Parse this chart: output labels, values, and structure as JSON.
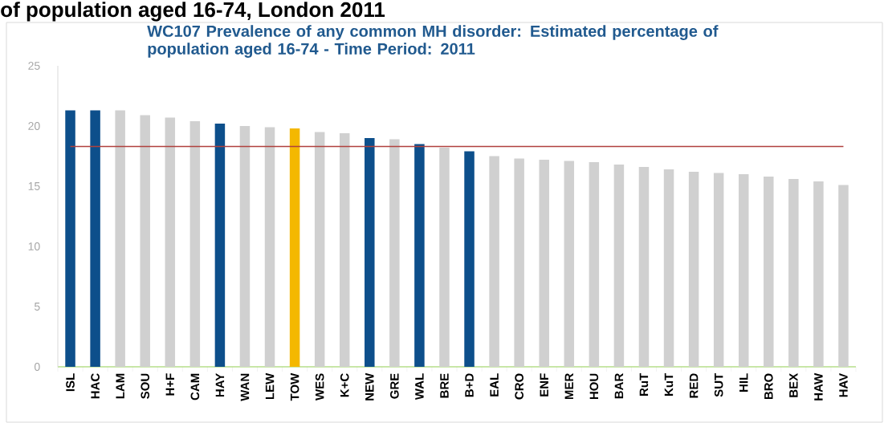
{
  "chart_data": {
    "type": "bar",
    "title": "of population aged 16-74, London 2011",
    "subtitle": "WC107 Prevalence of any common MH disorder: Estimated percentage of population aged 16-74 - Time Period: 2011",
    "categories": [
      "ISL",
      "HAC",
      "LAM",
      "SOU",
      "H+F",
      "CAM",
      "HAY",
      "WAN",
      "LEW",
      "TOW",
      "WES",
      "K+C",
      "NEW",
      "GRE",
      "WAL",
      "BRE",
      "B+D",
      "EAL",
      "CRO",
      "ENF",
      "MER",
      "HOU",
      "BAR",
      "RuT",
      "KuT",
      "RED",
      "SUT",
      "HIL",
      "BRO",
      "BEX",
      "HAW",
      "HAV"
    ],
    "values": [
      21.3,
      21.3,
      21.3,
      20.9,
      20.7,
      20.4,
      20.2,
      20.0,
      19.9,
      19.8,
      19.5,
      19.4,
      19.0,
      18.9,
      18.5,
      18.2,
      17.9,
      17.5,
      17.3,
      17.2,
      17.1,
      17.0,
      16.8,
      16.6,
      16.4,
      16.2,
      16.1,
      16.0,
      15.8,
      15.6,
      15.4,
      15.1
    ],
    "colors": [
      "#0d4f8b",
      "#0d4f8b",
      "#d0d0d0",
      "#d0d0d0",
      "#d0d0d0",
      "#d0d0d0",
      "#0d4f8b",
      "#d0d0d0",
      "#d0d0d0",
      "#f4b800",
      "#d0d0d0",
      "#d0d0d0",
      "#0d4f8b",
      "#d0d0d0",
      "#0d4f8b",
      "#d0d0d0",
      "#0d4f8b",
      "#d0d0d0",
      "#d0d0d0",
      "#d0d0d0",
      "#d0d0d0",
      "#d0d0d0",
      "#d0d0d0",
      "#d0d0d0",
      "#d0d0d0",
      "#d0d0d0",
      "#d0d0d0",
      "#d0d0d0",
      "#d0d0d0",
      "#d0d0d0",
      "#d0d0d0",
      "#d0d0d0"
    ],
    "ylim": [
      0,
      25
    ],
    "yticks": [
      0,
      5,
      10,
      15,
      20,
      25
    ],
    "ref_lines": [
      {
        "axis": "y",
        "value": 18.3,
        "color": "#b0413e"
      }
    ]
  }
}
